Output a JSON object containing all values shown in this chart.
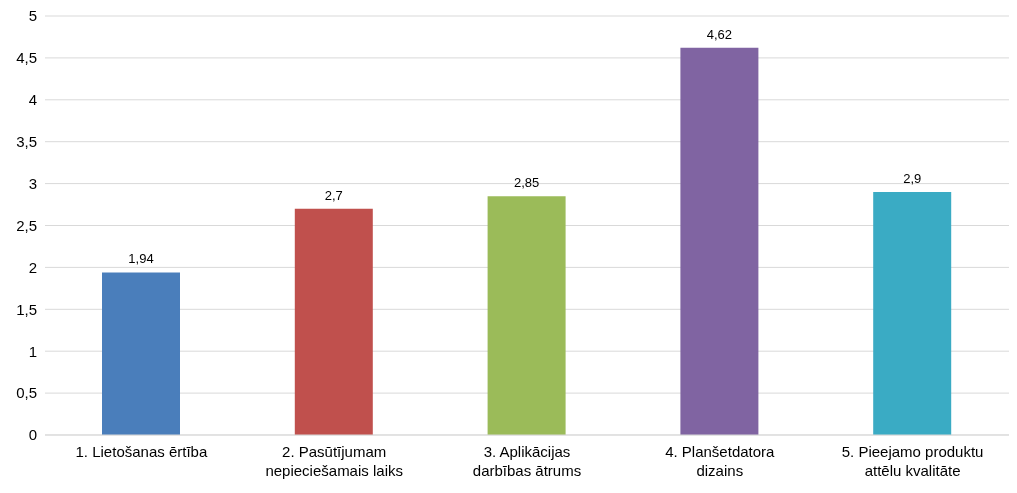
{
  "chart_data": {
    "type": "bar",
    "categories": [
      "1. Lietošanas ērtība",
      "2. Pasūtījumam nepieciešamais laiks",
      "3. Aplikācijas darbības ātrums",
      "4. Planšetdatora dizains",
      "5. Pieejamo produktu attēlu kvalitāte"
    ],
    "values": [
      1.94,
      2.7,
      2.85,
      4.62,
      2.9
    ],
    "value_labels": [
      "1,94",
      "2,7",
      "2,85",
      "4,62",
      "2,9"
    ],
    "colors": [
      "#4a7ebb",
      "#c0504d",
      "#9bbb59",
      "#8064a2",
      "#3aabc4"
    ],
    "ylim": [
      0,
      5
    ],
    "yticks": [
      0,
      {
        "value": 0.5,
        "label": "0,5"
      },
      1,
      {
        "value": 1.5,
        "label": "1,5"
      },
      2,
      {
        "value": 2.5,
        "label": "2,5"
      },
      3,
      {
        "value": 3.5,
        "label": "3,5"
      },
      4,
      {
        "value": 4.5,
        "label": "4,5"
      },
      5
    ],
    "grid": "y",
    "legend": false
  }
}
